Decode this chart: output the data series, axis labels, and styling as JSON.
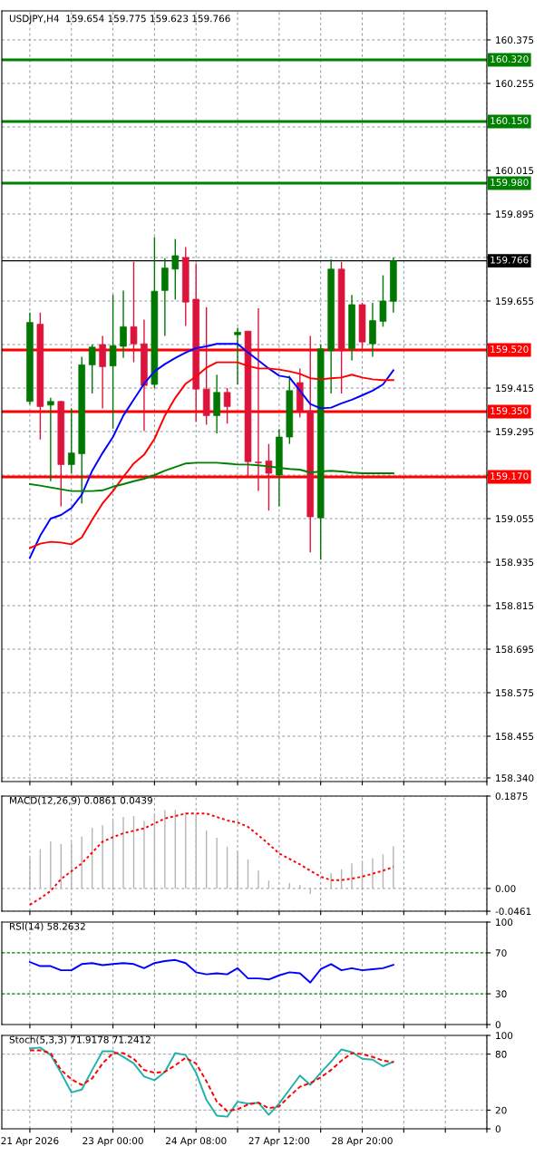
{
  "chart_data": [
    {
      "type": "candlestick",
      "title": "USDJPY,H4  159.654 159.775 159.623 159.766",
      "categories": [
        null,
        null,
        null,
        null,
        null,
        null,
        null,
        null,
        null,
        null,
        null,
        null,
        null,
        null,
        null,
        null,
        null,
        null,
        null,
        null,
        null,
        null,
        null,
        null,
        null,
        null,
        null,
        null,
        null,
        null,
        null,
        null,
        null,
        null,
        null,
        null
      ],
      "ohlc": [
        [
          159.378,
          159.623,
          159.37,
          159.596
        ],
        [
          159.591,
          159.623,
          159.273,
          159.364
        ],
        [
          159.368,
          159.388,
          159.158,
          159.378
        ],
        [
          159.378,
          159.38,
          159.089,
          159.204
        ],
        [
          159.204,
          159.359,
          159.18,
          159.236
        ],
        [
          159.234,
          159.501,
          159.097,
          159.479
        ],
        [
          159.479,
          159.535,
          159.4,
          159.528
        ],
        [
          159.535,
          159.559,
          159.359,
          159.474
        ],
        [
          159.476,
          159.672,
          159.303,
          159.532
        ],
        [
          159.53,
          159.684,
          159.498,
          159.584
        ],
        [
          159.584,
          159.763,
          159.486,
          159.537
        ],
        [
          159.537,
          159.604,
          159.297,
          159.422
        ],
        [
          159.425,
          159.831,
          159.415,
          159.682
        ],
        [
          159.684,
          159.773,
          159.559,
          159.746
        ],
        [
          159.743,
          159.826,
          159.659,
          159.78
        ],
        [
          159.775,
          159.804,
          159.586,
          159.652
        ],
        [
          159.66,
          159.758,
          159.322,
          159.412
        ],
        [
          159.412,
          159.638,
          159.314,
          159.339
        ],
        [
          159.339,
          159.452,
          159.29,
          159.403
        ],
        [
          159.403,
          159.415,
          159.317,
          159.364
        ],
        [
          159.562,
          159.581,
          159.425,
          159.569
        ],
        [
          159.572,
          159.572,
          159.17,
          159.212
        ],
        [
          159.211,
          159.635,
          159.131,
          159.209
        ],
        [
          159.214,
          159.261,
          159.077,
          159.18
        ],
        [
          159.175,
          159.302,
          159.089,
          159.28
        ],
        [
          159.28,
          159.449,
          159.261,
          159.408
        ],
        [
          159.43,
          159.469,
          159.334,
          159.352
        ],
        [
          159.352,
          159.559,
          158.962,
          159.06
        ],
        [
          159.057,
          159.535,
          158.942,
          159.523
        ],
        [
          159.518,
          159.77,
          159.4,
          159.743
        ],
        [
          159.743,
          159.763,
          159.4,
          159.518
        ],
        [
          159.523,
          159.672,
          159.491,
          159.645
        ],
        [
          159.645,
          159.65,
          159.518,
          159.542
        ],
        [
          159.537,
          159.65,
          159.501,
          159.601
        ],
        [
          159.599,
          159.726,
          159.584,
          159.655
        ],
        [
          159.654,
          159.775,
          159.623,
          159.766
        ]
      ],
      "series": [
        {
          "type": "line",
          "color": "#0000ff",
          "values": [
            158.947,
            159.008,
            159.055,
            159.065,
            159.084,
            159.121,
            159.187,
            159.236,
            159.28,
            159.339,
            159.383,
            159.427,
            159.461,
            159.481,
            159.498,
            159.513,
            159.525,
            159.53,
            159.537,
            159.537,
            159.537,
            159.513,
            159.491,
            159.469,
            159.449,
            159.444,
            159.408,
            159.371,
            159.359,
            159.361,
            159.373,
            159.383,
            159.395,
            159.408,
            159.425,
            159.464
          ]
        },
        {
          "type": "line",
          "color": "#ff0000",
          "values": [
            158.974,
            158.986,
            158.991,
            158.989,
            158.984,
            159.003,
            159.052,
            159.097,
            159.131,
            159.17,
            159.207,
            159.231,
            159.275,
            159.339,
            159.388,
            159.427,
            159.447,
            159.471,
            159.486,
            159.486,
            159.486,
            159.476,
            159.469,
            159.469,
            159.466,
            159.461,
            159.454,
            159.442,
            159.439,
            159.442,
            159.444,
            159.452,
            159.444,
            159.439,
            159.437,
            159.437
          ]
        },
        {
          "type": "line",
          "color": "#008000",
          "values": [
            159.15,
            159.146,
            159.141,
            159.136,
            159.131,
            159.131,
            159.131,
            159.133,
            159.143,
            159.15,
            159.158,
            159.165,
            159.175,
            159.187,
            159.197,
            159.207,
            159.209,
            159.209,
            159.209,
            159.207,
            159.204,
            159.204,
            159.202,
            159.199,
            159.195,
            159.192,
            159.19,
            159.182,
            159.185,
            159.187,
            159.185,
            159.182,
            159.18,
            159.18,
            159.18,
            159.18
          ]
        }
      ],
      "ylim": [
        158.33,
        160.455
      ],
      "yticks": [
        160.375,
        160.255,
        {
          "value": 160.135,
          "label": null
        },
        160.015,
        159.895,
        {
          "value": 159.775,
          "label": null
        },
        159.655,
        {
          "value": 159.535,
          "label": null
        },
        159.415,
        159.295,
        {
          "value": 159.175,
          "label": null
        },
        159.055,
        158.935,
        158.815,
        158.695,
        158.575,
        158.455,
        {
          "value": 158.34,
          "label": "158.340"
        }
      ],
      "ref_lines": [
        {
          "axis": "y",
          "value": 160.32,
          "label": "160.320",
          "color": "#008000"
        },
        {
          "axis": "y",
          "value": 160.15,
          "label": "160.150",
          "color": "#008000"
        },
        {
          "axis": "y",
          "value": 159.98,
          "label": "159.980",
          "color": "#008000"
        },
        {
          "axis": "y",
          "value": 159.766,
          "label": "159.766",
          "color": "#000000",
          "line_style": "solid"
        },
        {
          "axis": "y",
          "value": 159.52,
          "label": "159.520",
          "color": "#ff0000"
        },
        {
          "axis": "y",
          "value": 159.35,
          "label": "159.350",
          "color": "#ff0000"
        },
        {
          "axis": "y",
          "value": 159.17,
          "label": "159.170",
          "color": "#ff0000"
        }
      ],
      "grid": true,
      "tick_labels": "y"
    },
    {
      "type": "bar",
      "title": "MACD(12,26,9) 0.0861 0.0439",
      "categories": [
        null,
        null,
        null,
        null,
        null,
        null,
        null,
        null,
        null,
        null,
        null,
        null,
        null,
        null,
        null,
        null,
        null,
        null,
        null,
        null,
        null,
        null,
        null,
        null,
        null,
        null,
        null,
        null,
        null,
        null,
        null,
        null,
        null,
        null,
        null,
        null
      ],
      "series": [
        {
          "type": "bar",
          "color": "#b4b4b4",
          "values": [
            0.061,
            0.08,
            0.095,
            0.09,
            0.093,
            0.105,
            0.123,
            0.128,
            0.136,
            0.145,
            0.147,
            0.137,
            0.152,
            0.159,
            0.159,
            0.155,
            0.15,
            0.118,
            0.103,
            0.085,
            0.075,
            0.059,
            0.036,
            0.016,
            null,
            0.011,
            0.007,
            -0.011,
            null,
            0.031,
            0.039,
            0.051,
            0.056,
            0.061,
            0.069,
            0.0861
          ]
        },
        {
          "type": "line",
          "color": "#ff0000",
          "line_style": "dotted",
          "values": [
            -0.033,
            -0.02,
            -0.005,
            0.019,
            0.035,
            0.051,
            0.073,
            0.095,
            0.104,
            0.112,
            0.117,
            0.122,
            0.132,
            0.142,
            0.147,
            0.152,
            0.152,
            0.152,
            0.145,
            0.138,
            0.134,
            0.125,
            0.108,
            0.09,
            0.071,
            0.06,
            0.049,
            0.036,
            0.024,
            0.017,
            0.017,
            0.02,
            0.024,
            0.03,
            0.036,
            0.0439
          ]
        }
      ],
      "ylim": [
        -0.0461,
        0.1875
      ],
      "yticks": [
        0.1875,
        {
          "value": 0,
          "label": "0.00"
        },
        -0.0461
      ],
      "grid": true,
      "tick_labels": "y"
    },
    {
      "type": "line",
      "title": "RSI(14) 58.2632",
      "categories": [
        null,
        null,
        null,
        null,
        null,
        null,
        null,
        null,
        null,
        null,
        null,
        null,
        null,
        null,
        null,
        null,
        null,
        null,
        null,
        null,
        null,
        null,
        null,
        null,
        null,
        null,
        null,
        null,
        null,
        null,
        null,
        null,
        null,
        null,
        null,
        null
      ],
      "series": [
        {
          "type": "line",
          "color": "#0000ff",
          "values": [
            61,
            57,
            57,
            53,
            53,
            59,
            60,
            58,
            59,
            60,
            59,
            55,
            60,
            62,
            63,
            60,
            51,
            49,
            50,
            49,
            55,
            45,
            45,
            44,
            48,
            51,
            50,
            41,
            54,
            59,
            53,
            55,
            53,
            54,
            55,
            58.2632
          ]
        }
      ],
      "ylim": [
        0,
        100
      ],
      "yticks": [
        0,
        30,
        70,
        100
      ],
      "ref_lines": [
        {
          "axis": "y",
          "value": 70,
          "color": "#008000",
          "line_style": "dashed"
        },
        {
          "axis": "y",
          "value": 30,
          "color": "#008000",
          "line_style": "dashed"
        }
      ],
      "grid": "x",
      "tick_labels": "y"
    },
    {
      "type": "line",
      "title": "Stoch(5,3,3) 71.9178 71.2412",
      "categories": [
        "21 Apr 2026",
        null,
        null,
        null,
        null,
        null,
        null,
        null,
        "23 Apr 00:00",
        null,
        null,
        null,
        null,
        null,
        null,
        null,
        "24 Apr 08:00",
        null,
        null,
        null,
        null,
        null,
        null,
        null,
        "27 Apr 12:00",
        null,
        null,
        null,
        null,
        null,
        null,
        null,
        "28 Apr 20:00",
        null,
        null,
        null
      ],
      "series": [
        {
          "type": "line",
          "color": "#20b2aa",
          "values": [
            86,
            87,
            79,
            60,
            39,
            42,
            63,
            83,
            83,
            77,
            70,
            56,
            52,
            61,
            81,
            79,
            60,
            31,
            14,
            13,
            29,
            27,
            28,
            15,
            27,
            42,
            57,
            47,
            60,
            72,
            85,
            82,
            75,
            74,
            67,
            71.9178
          ]
        },
        {
          "type": "line",
          "color": "#ff0000",
          "line_style": "dashed",
          "values": [
            84,
            84,
            81,
            63,
            53,
            47,
            54,
            70,
            81,
            81,
            75,
            63,
            60,
            61,
            68,
            76,
            70,
            51,
            29,
            19,
            21,
            26,
            28,
            22,
            24,
            35,
            45,
            49,
            55,
            63,
            73,
            81,
            80,
            77,
            73,
            71.2412
          ]
        }
      ],
      "ylim": [
        0,
        100
      ],
      "yticks": [
        0,
        20,
        80,
        100
      ],
      "ref_lines": [
        {
          "axis": "y",
          "value": 80,
          "color": "#b4b4b4",
          "line_style": "dashed"
        },
        {
          "axis": "y",
          "value": 20,
          "color": "#b4b4b4",
          "line_style": "dashed"
        }
      ],
      "grid": "x"
    }
  ]
}
